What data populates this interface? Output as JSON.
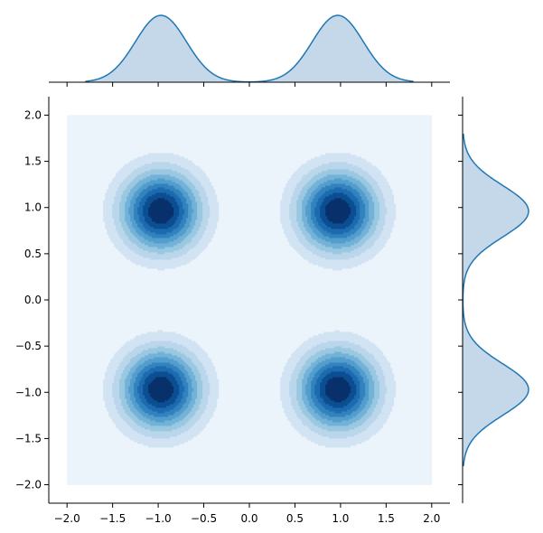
{
  "chart_data": {
    "type": "kde-jointplot",
    "title": "",
    "xlabel": "",
    "ylabel": "",
    "xlim": [
      -2.2,
      2.2
    ],
    "ylim": [
      -2.2,
      2.2
    ],
    "density_extent": [
      -2.0,
      2.0
    ],
    "x_ticks": [
      -2.0,
      -1.5,
      -1.0,
      -0.5,
      0.0,
      0.5,
      1.0,
      1.5,
      2.0
    ],
    "y_ticks": [
      -2.0,
      -1.5,
      -1.0,
      -0.5,
      0.0,
      0.5,
      1.0,
      1.5,
      2.0
    ],
    "x_tick_labels": [
      "−2.0",
      "−1.5",
      "−1.0",
      "−0.5",
      "0.0",
      "0.5",
      "1.0",
      "1.5",
      "2.0"
    ],
    "y_tick_labels": [
      "−2.0",
      "−1.5",
      "−1.0",
      "−0.5",
      "0.0",
      "0.5",
      "1.0",
      "1.5",
      "2.0"
    ],
    "modes": [
      {
        "x": -0.97,
        "y": 0.96
      },
      {
        "x": 0.97,
        "y": 0.96
      },
      {
        "x": -0.97,
        "y": -0.97
      },
      {
        "x": 0.97,
        "y": -0.97
      }
    ],
    "mode_sigma": 0.28,
    "contour_levels": 10,
    "marginal_x": {
      "peaks": [
        -0.97,
        0.97
      ],
      "range": [
        -1.8,
        1.8
      ]
    },
    "marginal_y": {
      "peaks": [
        0.96,
        -0.97
      ],
      "range": [
        -1.8,
        1.8
      ]
    },
    "grid": false,
    "legend": "none",
    "colors": {
      "line": "#1f77b4",
      "fill": "#c5d8ea",
      "contour_fills": [
        "#ebf3fb",
        "#d2e3f3",
        "#bad6eb",
        "#9ac8e0",
        "#73b2d8",
        "#529dcc",
        "#3282be",
        "#1c6aaf",
        "#0b4f92",
        "#08306b"
      ]
    }
  }
}
